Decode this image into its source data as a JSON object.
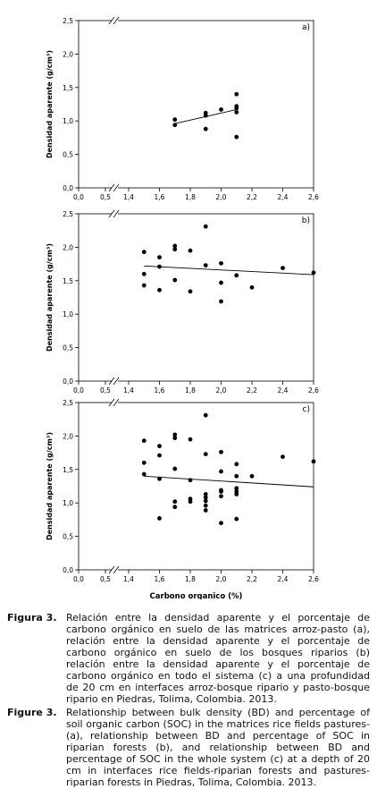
{
  "chart_data": [
    {
      "type": "scatter",
      "panel_label": "a)",
      "ylabel": "Densidad aparente (g/cm³)",
      "xlabel": "",
      "x_ticks": [
        "0,0",
        "0,5",
        "1,4",
        "1,6",
        "1,8",
        "2,0",
        "2,2",
        "2,4",
        "2,6"
      ],
      "y_ticks": [
        "0,0",
        "0,5",
        "1,0",
        "1,5",
        "2,0",
        "2,5"
      ],
      "ylim": [
        0,
        2.5
      ],
      "x_broken_axis": true,
      "points": [
        {
          "x": 1.7,
          "y": 1.02
        },
        {
          "x": 1.7,
          "y": 0.94
        },
        {
          "x": 1.9,
          "y": 1.12
        },
        {
          "x": 1.9,
          "y": 1.08
        },
        {
          "x": 1.9,
          "y": 0.88
        },
        {
          "x": 2.0,
          "y": 1.17
        },
        {
          "x": 2.1,
          "y": 1.4
        },
        {
          "x": 2.1,
          "y": 1.22
        },
        {
          "x": 2.1,
          "y": 1.19
        },
        {
          "x": 2.1,
          "y": 1.13
        },
        {
          "x": 2.1,
          "y": 0.76
        }
      ],
      "trendline": {
        "x": [
          1.7,
          2.1
        ],
        "y": [
          0.96,
          1.17
        ]
      }
    },
    {
      "type": "scatter",
      "panel_label": "b)",
      "ylabel": "Densidad aparente (g/cm³)",
      "xlabel": "",
      "x_ticks": [
        "0,0",
        "0,5",
        "1,4",
        "1,6",
        "1,8",
        "2,0",
        "2,2",
        "2,4",
        "2,6"
      ],
      "y_ticks": [
        "0,0",
        "0,5",
        "1,0",
        "1,5",
        "2,0",
        "2,5"
      ],
      "ylim": [
        0,
        2.5
      ],
      "x_broken_axis": true,
      "points": [
        {
          "x": 1.5,
          "y": 1.93
        },
        {
          "x": 1.5,
          "y": 1.6
        },
        {
          "x": 1.5,
          "y": 1.43
        },
        {
          "x": 1.6,
          "y": 1.85
        },
        {
          "x": 1.6,
          "y": 1.71
        },
        {
          "x": 1.6,
          "y": 1.36
        },
        {
          "x": 1.7,
          "y": 2.02
        },
        {
          "x": 1.7,
          "y": 1.97
        },
        {
          "x": 1.7,
          "y": 1.51
        },
        {
          "x": 1.8,
          "y": 1.95
        },
        {
          "x": 1.8,
          "y": 1.34
        },
        {
          "x": 1.9,
          "y": 2.31
        },
        {
          "x": 1.9,
          "y": 1.73
        },
        {
          "x": 2.0,
          "y": 1.76
        },
        {
          "x": 2.0,
          "y": 1.47
        },
        {
          "x": 2.0,
          "y": 1.19
        },
        {
          "x": 2.1,
          "y": 1.58
        },
        {
          "x": 2.2,
          "y": 1.4
        },
        {
          "x": 2.4,
          "y": 1.69
        },
        {
          "x": 2.6,
          "y": 1.62
        }
      ],
      "trendline": {
        "x": [
          1.5,
          2.6
        ],
        "y": [
          1.72,
          1.59
        ]
      }
    },
    {
      "type": "scatter",
      "panel_label": "c)",
      "ylabel": "Densidad aparente (g/cm³)",
      "xlabel": "Carbono organico (%)",
      "x_ticks": [
        "0,0",
        "0,5",
        "1,4",
        "1,6",
        "1,8",
        "2,0",
        "2,2",
        "2,4",
        "2,6"
      ],
      "y_ticks": [
        "0,0",
        "0,5",
        "1,0",
        "1,5",
        "2,0",
        "2,5"
      ],
      "ylim": [
        0,
        2.5
      ],
      "x_broken_axis": true,
      "points": [
        {
          "x": 1.5,
          "y": 1.93
        },
        {
          "x": 1.5,
          "y": 1.6
        },
        {
          "x": 1.5,
          "y": 1.43
        },
        {
          "x": 1.6,
          "y": 1.85
        },
        {
          "x": 1.6,
          "y": 1.71
        },
        {
          "x": 1.6,
          "y": 1.36
        },
        {
          "x": 1.6,
          "y": 0.77
        },
        {
          "x": 1.7,
          "y": 2.02
        },
        {
          "x": 1.7,
          "y": 1.97
        },
        {
          "x": 1.7,
          "y": 1.51
        },
        {
          "x": 1.7,
          "y": 1.02
        },
        {
          "x": 1.7,
          "y": 0.94
        },
        {
          "x": 1.8,
          "y": 1.95
        },
        {
          "x": 1.8,
          "y": 1.34
        },
        {
          "x": 1.8,
          "y": 1.06
        },
        {
          "x": 1.8,
          "y": 1.02
        },
        {
          "x": 1.9,
          "y": 2.31
        },
        {
          "x": 1.9,
          "y": 1.73
        },
        {
          "x": 1.9,
          "y": 1.13
        },
        {
          "x": 1.9,
          "y": 1.08
        },
        {
          "x": 1.9,
          "y": 1.03
        },
        {
          "x": 1.9,
          "y": 0.96
        },
        {
          "x": 1.9,
          "y": 0.89
        },
        {
          "x": 2.0,
          "y": 1.76
        },
        {
          "x": 2.0,
          "y": 1.47
        },
        {
          "x": 2.0,
          "y": 1.19
        },
        {
          "x": 2.0,
          "y": 1.17
        },
        {
          "x": 2.0,
          "y": 1.1
        },
        {
          "x": 2.0,
          "y": 0.7
        },
        {
          "x": 2.1,
          "y": 1.58
        },
        {
          "x": 2.1,
          "y": 1.4
        },
        {
          "x": 2.1,
          "y": 1.22
        },
        {
          "x": 2.1,
          "y": 1.17
        },
        {
          "x": 2.1,
          "y": 1.13
        },
        {
          "x": 2.1,
          "y": 0.76
        },
        {
          "x": 2.2,
          "y": 1.4
        },
        {
          "x": 2.4,
          "y": 1.69
        },
        {
          "x": 2.6,
          "y": 1.62
        }
      ],
      "trendline": {
        "x": [
          1.5,
          2.6
        ],
        "y": [
          1.4,
          1.24
        ]
      }
    }
  ],
  "captions": [
    {
      "label": "Figura 3.",
      "text": "Relación entre la densidad aparente y el porcentaje de carbono orgánico en suelo de las matrices arroz-pasto (a), relación entre la densidad aparente y el porcentaje de carbono orgánico en suelo de los bosques riparios (b) relación entre la densidad aparente y el porcentaje de carbono orgánico en todo el sistema (c) a una profundidad de 20 cm en interfaces arroz-bosque ripario y pasto-bosque ripario en Piedras, Tolima, Colombia. 2013."
    },
    {
      "label": "Figure 3.",
      "text": "Relationship between bulk density (BD) and percentage of soil organic carbon (SOC) in the matrices rice fields pastures- (a), relationship between BD and percentage of SOC in riparian forests (b), and relationship between BD and percentage of SOC in the whole system (c) at a depth of 20 cm in interfaces rice fields-riparian forests and pastures-riparian forests in Piedras, Tolima, Colombia. 2013."
    }
  ]
}
